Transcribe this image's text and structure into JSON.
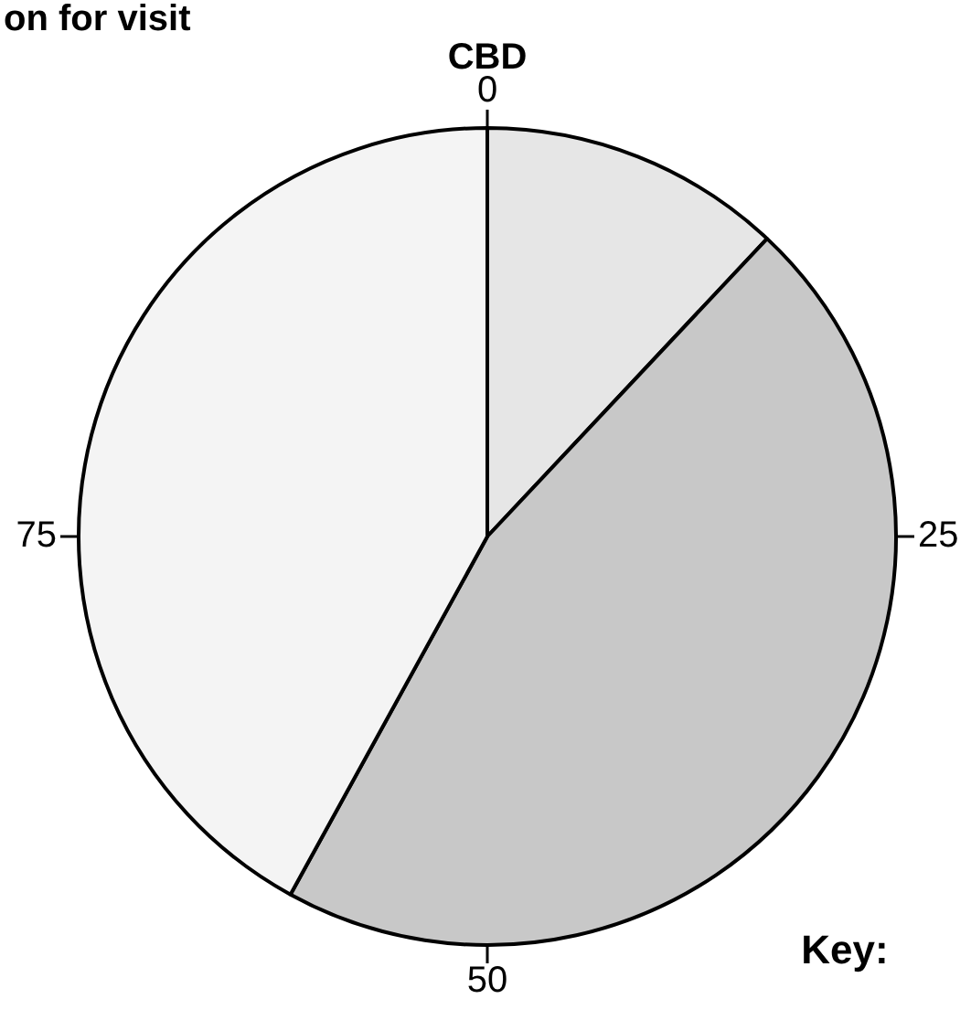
{
  "chart_data": {
    "type": "pie",
    "title": "on for visit",
    "subtitle": "CBD",
    "legend_title": "Key:",
    "categories": [
      null,
      null,
      null
    ],
    "values": [
      12,
      46,
      42
    ],
    "colors": [
      "#e6e6e6",
      "#c8c8c8",
      "#f4f4f4"
    ],
    "annotations": [
      "0",
      "25",
      "50",
      "75"
    ]
  }
}
